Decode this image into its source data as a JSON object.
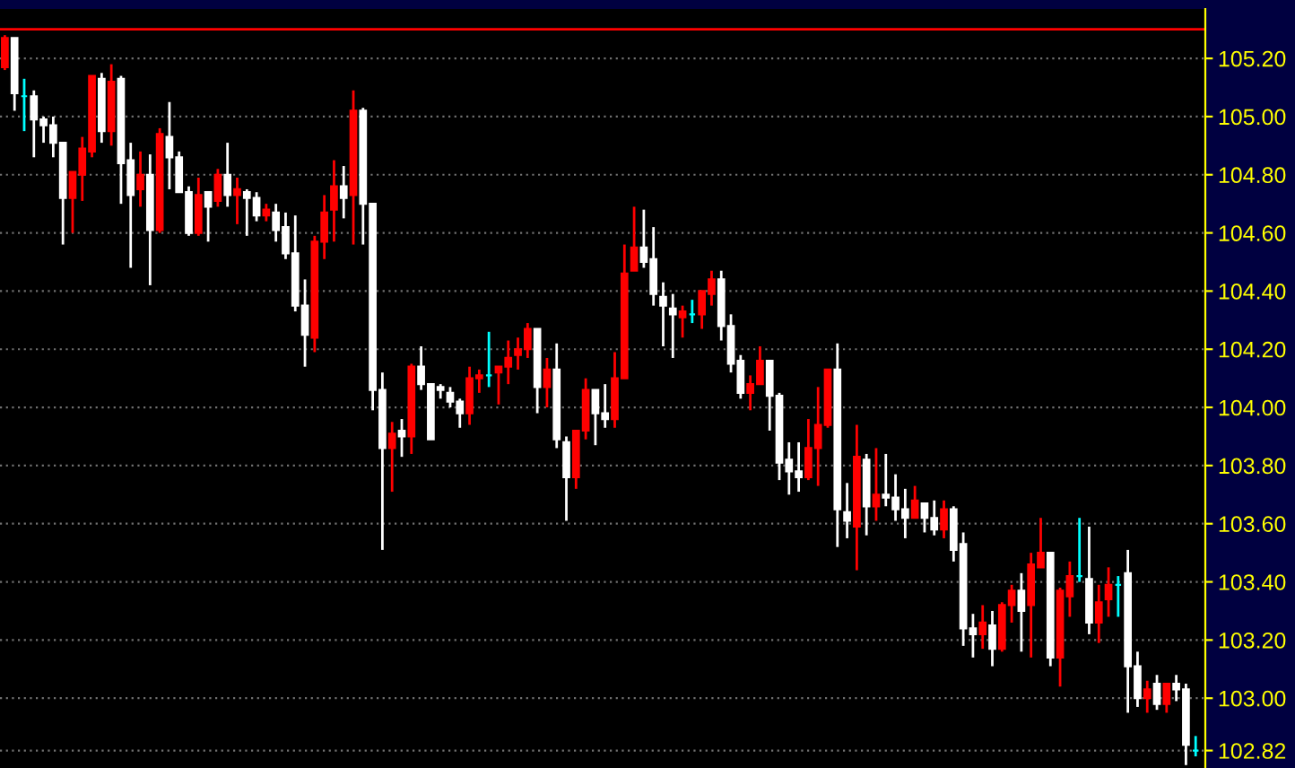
{
  "chart_data": {
    "type": "candlestick",
    "categories": [
      null,
      null,
      null,
      null,
      null,
      null,
      null,
      null,
      null,
      null,
      null,
      null,
      null,
      null,
      null,
      null,
      null,
      null,
      null,
      null,
      null,
      null,
      null,
      null,
      null,
      null,
      null,
      null,
      null,
      null,
      null,
      null,
      null,
      null,
      null,
      null,
      null,
      null,
      null,
      null,
      null,
      null,
      null,
      null,
      null,
      null,
      null,
      null,
      null,
      null,
      null,
      null,
      null,
      null,
      null,
      null,
      null,
      null,
      null,
      null,
      null,
      null,
      null,
      null,
      null,
      null,
      null,
      null,
      null,
      null,
      null,
      null,
      null,
      null,
      null,
      null,
      null,
      null,
      null,
      null,
      null,
      null,
      null,
      null,
      null,
      null,
      null,
      null,
      null,
      null,
      null,
      null,
      null,
      null,
      null,
      null,
      null,
      null,
      null,
      null,
      null,
      null,
      null,
      null,
      null,
      null,
      null,
      null,
      null,
      null,
      null,
      null,
      null,
      null,
      null,
      null,
      null,
      null,
      null,
      null,
      null,
      null,
      null,
      null
    ],
    "ohlc": [
      [
        105.17,
        105.28,
        105.16,
        105.27
      ],
      [
        105.27,
        105.27,
        105.02,
        105.08
      ],
      [
        105.07,
        105.13,
        104.95,
        105.07
      ],
      [
        105.07,
        105.09,
        104.86,
        104.99
      ],
      [
        104.99,
        105.0,
        104.91,
        104.97
      ],
      [
        104.97,
        105.0,
        104.86,
        104.91
      ],
      [
        104.91,
        104.91,
        104.56,
        104.72
      ],
      [
        104.72,
        104.81,
        104.6,
        104.81
      ],
      [
        104.8,
        104.93,
        104.71,
        104.89
      ],
      [
        104.88,
        105.14,
        104.86,
        105.14
      ],
      [
        105.13,
        105.15,
        104.91,
        104.95
      ],
      [
        104.95,
        105.18,
        104.9,
        105.12
      ],
      [
        105.13,
        105.14,
        104.7,
        104.84
      ],
      [
        104.85,
        104.91,
        104.48,
        104.73
      ],
      [
        104.75,
        104.88,
        104.69,
        104.8
      ],
      [
        104.8,
        104.87,
        104.42,
        104.61
      ],
      [
        104.61,
        104.96,
        104.6,
        104.94
      ],
      [
        104.93,
        105.05,
        104.75,
        104.86
      ],
      [
        104.86,
        104.88,
        104.74,
        104.74
      ],
      [
        104.74,
        104.76,
        104.59,
        104.6
      ],
      [
        104.6,
        104.79,
        104.59,
        104.73
      ],
      [
        104.74,
        104.74,
        104.57,
        104.69
      ],
      [
        104.71,
        104.82,
        104.69,
        104.8
      ],
      [
        104.8,
        104.91,
        104.69,
        104.73
      ],
      [
        104.73,
        104.79,
        104.63,
        104.75
      ],
      [
        104.74,
        104.75,
        104.59,
        104.72
      ],
      [
        104.72,
        104.74,
        104.64,
        104.66
      ],
      [
        104.66,
        104.7,
        104.64,
        104.68
      ],
      [
        104.67,
        104.7,
        104.57,
        104.61
      ],
      [
        104.62,
        104.67,
        104.51,
        104.53
      ],
      [
        104.53,
        104.66,
        104.33,
        104.35
      ],
      [
        104.35,
        104.44,
        104.14,
        104.25
      ],
      [
        104.24,
        104.59,
        104.19,
        104.57
      ],
      [
        104.57,
        104.73,
        104.51,
        104.67
      ],
      [
        104.68,
        104.85,
        104.57,
        104.76
      ],
      [
        104.76,
        104.83,
        104.65,
        104.72
      ],
      [
        104.73,
        105.09,
        104.56,
        105.02
      ],
      [
        105.02,
        105.03,
        104.56,
        104.7
      ],
      [
        104.7,
        104.7,
        103.99,
        104.06
      ],
      [
        104.06,
        104.12,
        103.51,
        103.86
      ],
      [
        103.86,
        103.95,
        103.71,
        103.91
      ],
      [
        103.92,
        103.96,
        103.83,
        103.9
      ],
      [
        103.9,
        104.15,
        103.84,
        104.14
      ],
      [
        104.14,
        104.21,
        104.06,
        104.08
      ],
      [
        104.08,
        104.08,
        103.89,
        103.89
      ],
      [
        104.07,
        104.08,
        104.03,
        104.06
      ],
      [
        104.05,
        104.07,
        104.0,
        104.02
      ],
      [
        104.02,
        104.03,
        103.93,
        103.98
      ],
      [
        103.98,
        104.14,
        103.94,
        104.1
      ],
      [
        104.1,
        104.13,
        104.05,
        104.11
      ],
      [
        104.11,
        104.26,
        104.07,
        104.11
      ],
      [
        104.12,
        104.14,
        104.01,
        104.14
      ],
      [
        104.14,
        104.23,
        104.08,
        104.17
      ],
      [
        104.18,
        104.24,
        104.13,
        104.2
      ],
      [
        104.2,
        104.29,
        104.17,
        104.27
      ],
      [
        104.27,
        104.27,
        103.98,
        104.07
      ],
      [
        104.07,
        104.17,
        104.0,
        104.13
      ],
      [
        104.13,
        104.22,
        103.86,
        103.89
      ],
      [
        103.88,
        103.9,
        103.61,
        103.76
      ],
      [
        103.76,
        103.92,
        103.72,
        103.92
      ],
      [
        103.92,
        104.1,
        103.89,
        104.06
      ],
      [
        104.06,
        104.06,
        103.87,
        103.98
      ],
      [
        103.98,
        104.08,
        103.93,
        103.96
      ],
      [
        103.96,
        104.19,
        103.93,
        104.1
      ],
      [
        104.1,
        104.56,
        104.1,
        104.46
      ],
      [
        104.47,
        104.69,
        104.47,
        104.55
      ],
      [
        104.55,
        104.68,
        104.48,
        104.5
      ],
      [
        104.51,
        104.62,
        104.35,
        104.39
      ],
      [
        104.38,
        104.43,
        104.21,
        104.35
      ],
      [
        104.34,
        104.39,
        104.17,
        104.32
      ],
      [
        104.31,
        104.35,
        104.24,
        104.33
      ],
      [
        104.32,
        104.37,
        104.29,
        104.32
      ],
      [
        104.32,
        104.4,
        104.27,
        104.4
      ],
      [
        104.39,
        104.47,
        104.35,
        104.44
      ],
      [
        104.44,
        104.47,
        104.23,
        104.28
      ],
      [
        104.28,
        104.32,
        104.12,
        104.15
      ],
      [
        104.16,
        104.18,
        104.03,
        104.05
      ],
      [
        104.05,
        104.11,
        103.99,
        104.08
      ],
      [
        104.08,
        104.21,
        104.08,
        104.16
      ],
      [
        104.16,
        104.16,
        103.92,
        104.04
      ],
      [
        104.04,
        104.05,
        103.75,
        103.81
      ],
      [
        103.82,
        103.88,
        103.7,
        103.78
      ],
      [
        103.78,
        103.88,
        103.71,
        103.76
      ],
      [
        103.76,
        103.96,
        103.75,
        103.86
      ],
      [
        103.86,
        104.07,
        103.73,
        103.94
      ],
      [
        103.94,
        104.13,
        103.93,
        104.13
      ],
      [
        104.13,
        104.22,
        103.52,
        103.65
      ],
      [
        103.64,
        103.74,
        103.55,
        103.61
      ],
      [
        103.59,
        103.94,
        103.44,
        103.83
      ],
      [
        103.82,
        103.84,
        103.56,
        103.66
      ],
      [
        103.66,
        103.86,
        103.61,
        103.7
      ],
      [
        103.7,
        103.84,
        103.66,
        103.69
      ],
      [
        103.69,
        103.77,
        103.61,
        103.65
      ],
      [
        103.65,
        103.72,
        103.55,
        103.62
      ],
      [
        103.62,
        103.73,
        103.62,
        103.68
      ],
      [
        103.67,
        103.67,
        103.57,
        103.62
      ],
      [
        103.62,
        103.68,
        103.56,
        103.58
      ],
      [
        103.58,
        103.68,
        103.55,
        103.65
      ],
      [
        103.65,
        103.66,
        103.47,
        103.51
      ],
      [
        103.53,
        103.57,
        103.18,
        103.24
      ],
      [
        103.24,
        103.29,
        103.14,
        103.22
      ],
      [
        103.22,
        103.32,
        103.17,
        103.26
      ],
      [
        103.25,
        103.3,
        103.11,
        103.17
      ],
      [
        103.17,
        103.33,
        103.16,
        103.32
      ],
      [
        103.32,
        103.39,
        103.26,
        103.37
      ],
      [
        103.37,
        103.43,
        103.16,
        103.3
      ],
      [
        103.32,
        103.5,
        103.14,
        103.46
      ],
      [
        103.45,
        103.62,
        103.45,
        103.5
      ],
      [
        103.5,
        103.5,
        103.11,
        103.14
      ],
      [
        103.14,
        103.38,
        103.04,
        103.37
      ],
      [
        103.35,
        103.47,
        103.28,
        103.42
      ],
      [
        103.42,
        103.62,
        103.4,
        103.42
      ],
      [
        103.41,
        103.59,
        103.22,
        103.26
      ],
      [
        103.26,
        103.39,
        103.19,
        103.33
      ],
      [
        103.34,
        103.45,
        103.28,
        103.39
      ],
      [
        103.39,
        103.42,
        103.28,
        103.39
      ],
      [
        103.43,
        103.51,
        102.95,
        103.11
      ],
      [
        103.11,
        103.16,
        102.97,
        103.0
      ],
      [
        103.0,
        103.06,
        102.95,
        103.03
      ],
      [
        103.05,
        103.08,
        102.96,
        102.98
      ],
      [
        102.98,
        103.05,
        102.95,
        103.05
      ],
      [
        103.05,
        103.08,
        102.99,
        103.03
      ],
      [
        103.03,
        103.05,
        102.77,
        102.84
      ],
      [
        102.82,
        102.87,
        102.8,
        102.82
      ]
    ],
    "colors": [
      "#ff0000",
      "#ffffff",
      "#00ffff",
      "#ffffff",
      "#ffffff",
      "#ffffff",
      "#ffffff",
      "#ff0000",
      "#ff0000",
      "#ff0000",
      "#ffffff",
      "#ff0000",
      "#ffffff",
      "#ffffff",
      "#ff0000",
      "#ffffff",
      "#ff0000",
      "#ffffff",
      "#ffffff",
      "#ffffff",
      "#ff0000",
      "#ffffff",
      "#ff0000",
      "#ffffff",
      "#ff0000",
      "#ffffff",
      "#ffffff",
      "#ff0000",
      "#ffffff",
      "#ffffff",
      "#ffffff",
      "#ffffff",
      "#ff0000",
      "#ff0000",
      "#ff0000",
      "#ffffff",
      "#ff0000",
      "#ffffff",
      "#ffffff",
      "#ffffff",
      "#ff0000",
      "#ffffff",
      "#ff0000",
      "#ffffff",
      "#ffffff",
      "#ffffff",
      "#ffffff",
      "#ffffff",
      "#ff0000",
      "#ff0000",
      "#00ffff",
      "#ff0000",
      "#ff0000",
      "#ff0000",
      "#ff0000",
      "#ffffff",
      "#ff0000",
      "#ffffff",
      "#ffffff",
      "#ff0000",
      "#ff0000",
      "#ffffff",
      "#ffffff",
      "#ff0000",
      "#ff0000",
      "#ff0000",
      "#ffffff",
      "#ffffff",
      "#ffffff",
      "#ffffff",
      "#ff0000",
      "#00ffff",
      "#ff0000",
      "#ff0000",
      "#ffffff",
      "#ffffff",
      "#ffffff",
      "#ff0000",
      "#ff0000",
      "#ffffff",
      "#ffffff",
      "#ffffff",
      "#ffffff",
      "#ff0000",
      "#ff0000",
      "#ff0000",
      "#ffffff",
      "#ffffff",
      "#ff0000",
      "#ffffff",
      "#ff0000",
      "#ffffff",
      "#ffffff",
      "#ffffff",
      "#ff0000",
      "#ffffff",
      "#ffffff",
      "#ff0000",
      "#ffffff",
      "#ffffff",
      "#ffffff",
      "#ff0000",
      "#ffffff",
      "#ff0000",
      "#ff0000",
      "#ffffff",
      "#ff0000",
      "#ff0000",
      "#ffffff",
      "#ff0000",
      "#ff0000",
      "#00ffff",
      "#ffffff",
      "#ff0000",
      "#ff0000",
      "#00ffff",
      "#ffffff",
      "#ffffff",
      "#ff0000",
      "#ffffff",
      "#ff0000",
      "#ffffff",
      "#ffffff",
      "#00ffff"
    ],
    "ylim": [
      102.76,
      105.37
    ],
    "yticks": [
      {
        "value": 103.0,
        "label": "103.00"
      },
      {
        "value": 103.2,
        "label": "103.20"
      },
      {
        "value": 103.4,
        "label": "103.40"
      },
      {
        "value": 103.6,
        "label": "103.60"
      },
      {
        "value": 103.8,
        "label": "103.80"
      },
      {
        "value": 104.0,
        "label": "104.00"
      },
      {
        "value": 104.2,
        "label": "104.20"
      },
      {
        "value": 104.4,
        "label": "104.40"
      },
      {
        "value": 104.6,
        "label": "104.60"
      },
      {
        "value": 104.8,
        "label": "104.80"
      },
      {
        "value": 105.0,
        "label": "105.00"
      },
      {
        "value": 105.2,
        "label": "105.20"
      },
      {
        "value": 102.82,
        "label": "102.82"
      }
    ],
    "ref_lines": [
      {
        "axis": "y",
        "value": 105.3,
        "color": "#ff0000",
        "line_style": "solid"
      }
    ],
    "grid": "y",
    "tick_labels": "y"
  }
}
